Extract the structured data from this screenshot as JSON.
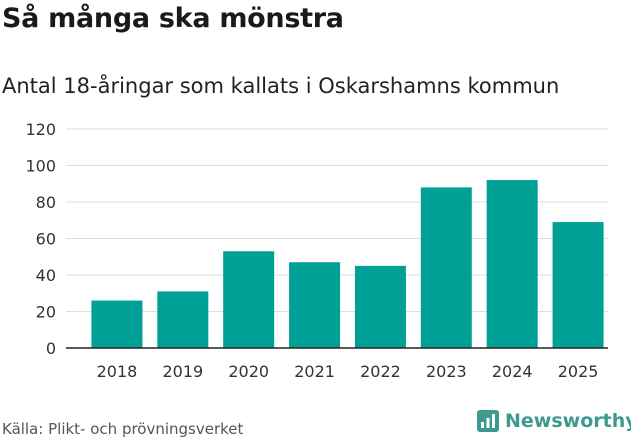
{
  "title": "Så många ska mönstra",
  "subtitle": "Antal 18-åringar som kallats i Oskarshamns kommun",
  "source": "Källa: Plikt- och prövningsverket",
  "brand": {
    "name": "Newsworthy",
    "icon": "newsworthy-logo-icon",
    "color": "#3d9a8f"
  },
  "colors": {
    "bar": "#00a096",
    "grid": "#dddddd",
    "axis": "#222222"
  },
  "chart_data": {
    "type": "bar",
    "title": "Så många ska mönstra",
    "subtitle": "Antal 18-åringar som kallats i Oskarshamns kommun",
    "categories": [
      "2018",
      "2019",
      "2020",
      "2021",
      "2022",
      "2023",
      "2024",
      "2025"
    ],
    "values": [
      26,
      31,
      53,
      47,
      45,
      88,
      92,
      69
    ],
    "ylim": [
      0,
      120
    ],
    "yticks": [
      0,
      20,
      40,
      60,
      80,
      100,
      120
    ],
    "grid": true,
    "legend": "none"
  }
}
